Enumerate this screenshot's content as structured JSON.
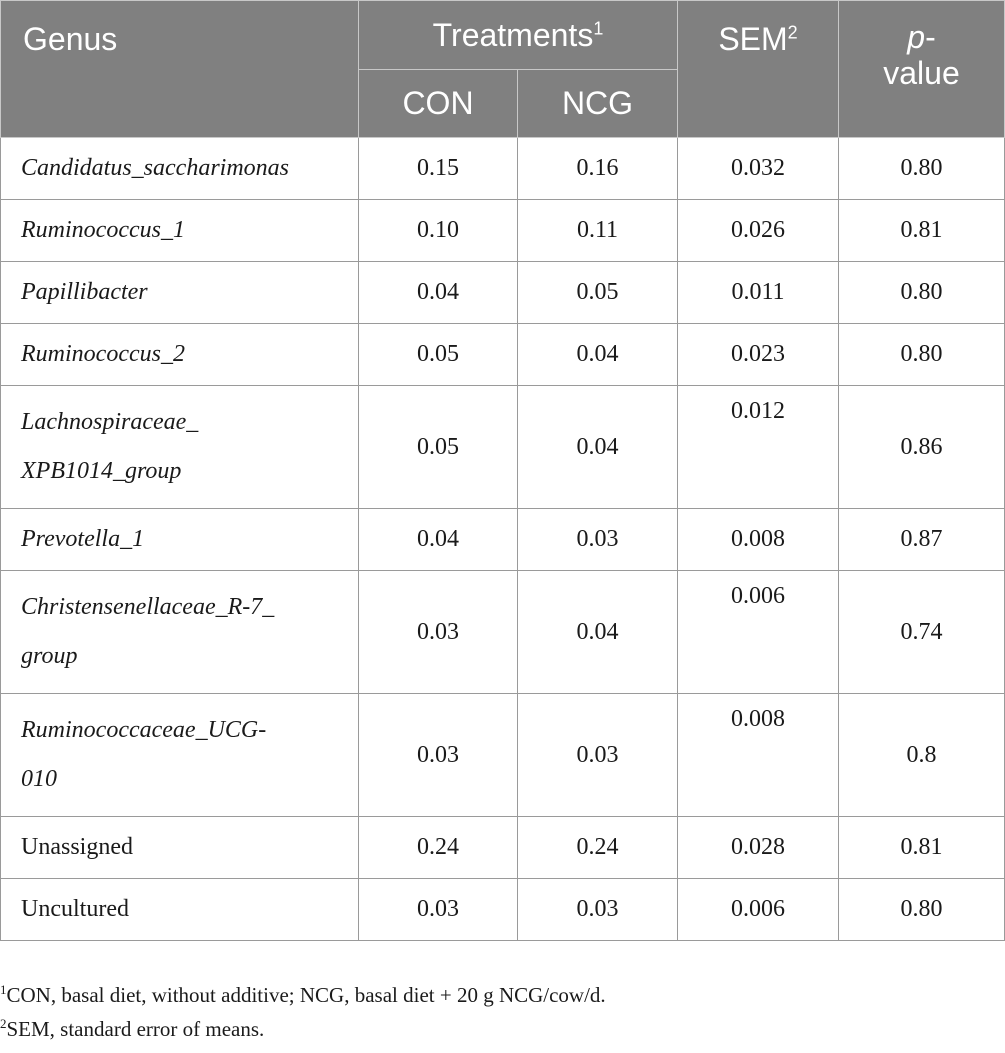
{
  "header": {
    "genus": "Genus",
    "treatments": "Treatments",
    "treatments_sup": "1",
    "sem": "SEM",
    "sem_sup": "2",
    "p_italic": "p",
    "p_hyphen": "-",
    "p_value": "value",
    "con": "CON",
    "ncg": "NCG"
  },
  "rows": [
    {
      "genus": "Candidatus_saccharimonas",
      "con": "0.15",
      "ncg": "0.16",
      "sem": "0.032",
      "p": "0.80"
    },
    {
      "genus": "Ruminococcus_1",
      "con": "0.10",
      "ncg": "0.11",
      "sem": "0.026",
      "p": "0.81"
    },
    {
      "genus": "Papillibacter",
      "con": "0.04",
      "ncg": "0.05",
      "sem": "0.011",
      "p": "0.80"
    },
    {
      "genus": "Ruminococcus_2",
      "con": "0.05",
      "ncg": "0.04",
      "sem": "0.023",
      "p": "0.80"
    },
    {
      "genus_line1": "Lachnospiraceae_",
      "genus_line2": "XPB1014_group",
      "con": "0.05",
      "ncg": "0.04",
      "sem": "0.012",
      "p": "0.86"
    },
    {
      "genus": "Prevotella_1",
      "con": "0.04",
      "ncg": "0.03",
      "sem": "0.008",
      "p": "0.87"
    },
    {
      "genus_line1": "Christensenellaceae_R-7_",
      "genus_line2": "group",
      "con": "0.03",
      "ncg": "0.04",
      "sem": "0.006",
      "p": "0.74"
    },
    {
      "genus_line1": "Ruminococcaceae_UCG-",
      "genus_line2": "010",
      "con": "0.03",
      "ncg": "0.03",
      "sem": "0.008",
      "p": "0.8"
    },
    {
      "genus": "Unassigned",
      "con": "0.24",
      "ncg": "0.24",
      "sem": "0.028",
      "p": "0.81"
    },
    {
      "genus": "Uncultured",
      "con": "0.03",
      "ncg": "0.03",
      "sem": "0.006",
      "p": "0.80"
    }
  ],
  "footnotes": [
    {
      "mark": "1",
      "text": "CON, basal diet, without additive; NCG, basal diet + 20 g NCG/cow/d."
    },
    {
      "mark": "2",
      "text": "SEM, standard error of means."
    }
  ]
}
